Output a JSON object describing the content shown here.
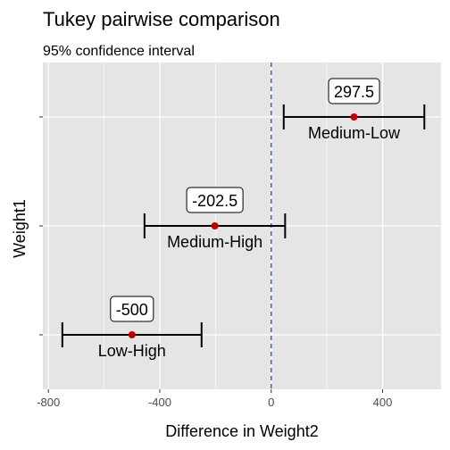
{
  "chart_data": {
    "type": "errorbar",
    "title": "Tukey pairwise comparison",
    "subtitle": "95% confidence interval",
    "xlabel": "Difference in Weight2",
    "ylabel": "Weight1",
    "xlim": [
      -820,
      610
    ],
    "xticks": [
      -800,
      -400,
      0,
      400
    ],
    "xtick_labels": [
      "-800",
      "-400",
      "0",
      "400"
    ],
    "grid": true,
    "reference_line": {
      "x": 0,
      "style": "dashed",
      "color": "#3355cc"
    },
    "colors": {
      "panel": "#e5e5e5",
      "grid": "#ffffff",
      "point": "#c00000",
      "errorbar": "#000000"
    },
    "comparisons": [
      {
        "name": "Low-High",
        "estimate": -500,
        "estimate_label": "-500",
        "lower": -750,
        "upper": -250
      },
      {
        "name": "Medium-High",
        "estimate": -202.5,
        "estimate_label": "-202.5",
        "lower": -455,
        "upper": 50
      },
      {
        "name": "Medium-Low",
        "estimate": 297.5,
        "estimate_label": "297.5",
        "lower": 45,
        "upper": 550
      }
    ]
  }
}
